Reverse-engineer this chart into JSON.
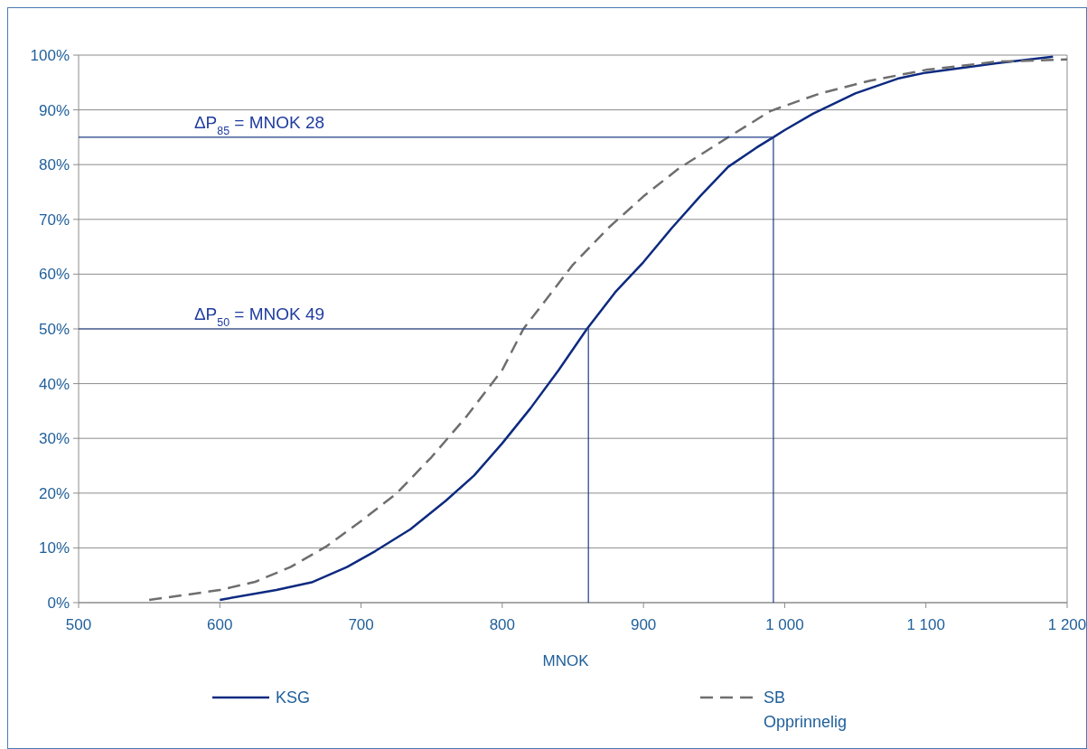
{
  "chart_data": {
    "type": "line",
    "xlabel": "MNOK",
    "xlim": [
      500,
      1200
    ],
    "xticks": [
      500,
      600,
      700,
      800,
      900,
      {
        "value": 1000,
        "label": "1 000"
      },
      {
        "value": 1100,
        "label": "1 100"
      },
      {
        "value": 1200,
        "label": "1 200"
      }
    ],
    "ylim": [
      0,
      100
    ],
    "yticks": [
      {
        "value": 0,
        "label": "0%"
      },
      {
        "value": 10,
        "label": "10%"
      },
      {
        "value": 20,
        "label": "20%"
      },
      {
        "value": 30,
        "label": "30%"
      },
      {
        "value": 40,
        "label": "40%"
      },
      {
        "value": 50,
        "label": "50%"
      },
      {
        "value": 60,
        "label": "60%"
      },
      {
        "value": 70,
        "label": "70%"
      },
      {
        "value": 80,
        "label": "80%"
      },
      {
        "value": 90,
        "label": "90%"
      },
      {
        "value": 100,
        "label": "100%"
      }
    ],
    "grid": "y",
    "legend": "bottom",
    "series": [
      {
        "name": "KSG",
        "color": "#0d2a80",
        "line_style": "solid",
        "x": [
          600,
          640,
          665,
          690,
          710,
          735,
          760,
          780,
          800,
          820,
          840,
          860,
          880,
          900,
          920,
          940,
          960,
          980,
          992,
          1000,
          1020,
          1050,
          1080,
          1100,
          1150,
          1190
        ],
        "values": [
          0.5,
          2.3,
          3.7,
          6.5,
          9.4,
          13.4,
          18.6,
          23.2,
          29.1,
          35.5,
          42.5,
          50,
          56.7,
          62.2,
          68.4,
          74.2,
          79.6,
          83.1,
          85,
          86.3,
          89.3,
          93,
          95.7,
          96.8,
          98.5,
          99.7
        ]
      },
      {
        "name": "SB Opprinnelig",
        "color": "#6e6e6e",
        "line_style": "dashed",
        "x": [
          550,
          600,
          625,
          650,
          675,
          700,
          725,
          750,
          775,
          800,
          815,
          830,
          850,
          875,
          900,
          925,
          960,
          990,
          1025,
          1060,
          1100,
          1150,
          1200
        ],
        "values": [
          0.5,
          2.3,
          3.8,
          6.5,
          10.2,
          14.9,
          19.9,
          26.6,
          34.1,
          42.5,
          50,
          55,
          61.7,
          68.4,
          74.2,
          79.3,
          85,
          89.8,
          93,
          95.3,
          97.3,
          98.8,
          99.2
        ]
      },
      {
        "color": "#1f3c88",
        "line_style": "solid",
        "x": [
          500,
          992,
          992
        ],
        "values": [
          85,
          85,
          0
        ]
      },
      {
        "color": "#1f3c88",
        "line_style": "solid",
        "x": [
          500,
          861,
          861
        ],
        "values": [
          50,
          50,
          0
        ]
      }
    ],
    "annotations": [
      "ΔP$_{85}$ = MNOK 28",
      "ΔP$_{50}$ = MNOK 49"
    ]
  }
}
